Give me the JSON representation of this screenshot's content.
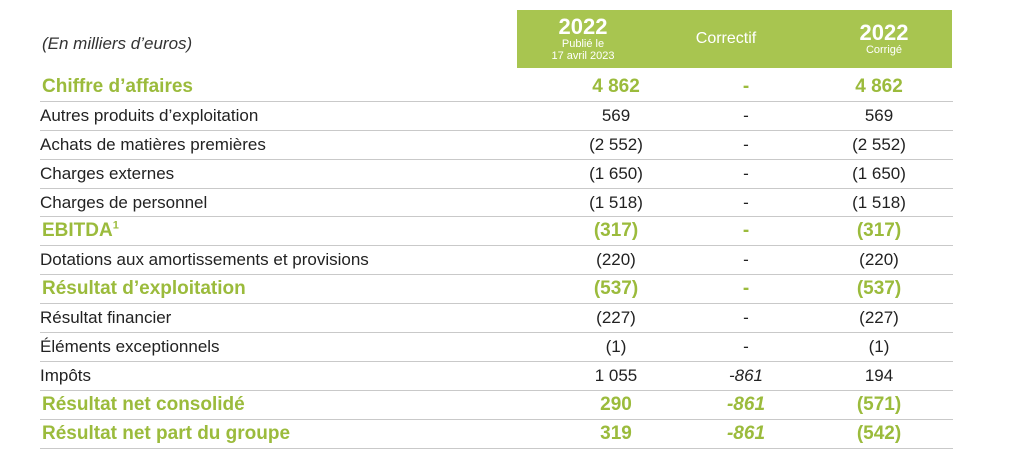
{
  "header": {
    "label": "(En milliers d’euros)",
    "col1_year": "2022",
    "col1_sub1": "Publié le",
    "col1_sub2": "17 avril 2023",
    "col2": "Correctif",
    "col3_year": "2022",
    "col3_sub": "Corrigé"
  },
  "rows": [
    {
      "label": "Chiffre d’affaires",
      "published": "4 862",
      "correction": "-",
      "corrected": "4 862"
    },
    {
      "label": "Autres produits d’exploitation",
      "published": "569",
      "correction": "-",
      "corrected": "569"
    },
    {
      "label": "Achats de matières premières",
      "published": "(2 552)",
      "correction": "-",
      "corrected": "(2 552)"
    },
    {
      "label": "Charges externes",
      "published": "(1 650)",
      "correction": "-",
      "corrected": "(1 650)"
    },
    {
      "label": "Charges de personnel",
      "published": "(1 518)",
      "correction": "-",
      "corrected": "(1 518)"
    },
    {
      "label": "EBITDA",
      "label_sup": "1",
      "published": "(317)",
      "correction": "-",
      "corrected": "(317)"
    },
    {
      "label": "Dotations aux amortissements et provisions",
      "published": "(220)",
      "correction": "-",
      "corrected": "(220)"
    },
    {
      "label": "Résultat d’exploitation",
      "published": "(537)",
      "correction": "-",
      "corrected": "(537)"
    },
    {
      "label": "Résultat financier",
      "published": "(227)",
      "correction": "-",
      "corrected": "(227)"
    },
    {
      "label": "Éléments exceptionnels",
      "published": "(1)",
      "correction": "-",
      "corrected": "(1)"
    },
    {
      "label": "Impôts",
      "published": "1 055",
      "correction": "-861",
      "corrected": "194"
    },
    {
      "label": "Résultat net consolidé",
      "published": "290",
      "correction": "-861",
      "corrected": "(571)"
    },
    {
      "label": "Résultat net part du groupe",
      "published": "319",
      "correction": "-861",
      "corrected": "(542)"
    }
  ],
  "colors": {
    "accent": "#9bbb3c",
    "header_band": "#a8c550"
  }
}
